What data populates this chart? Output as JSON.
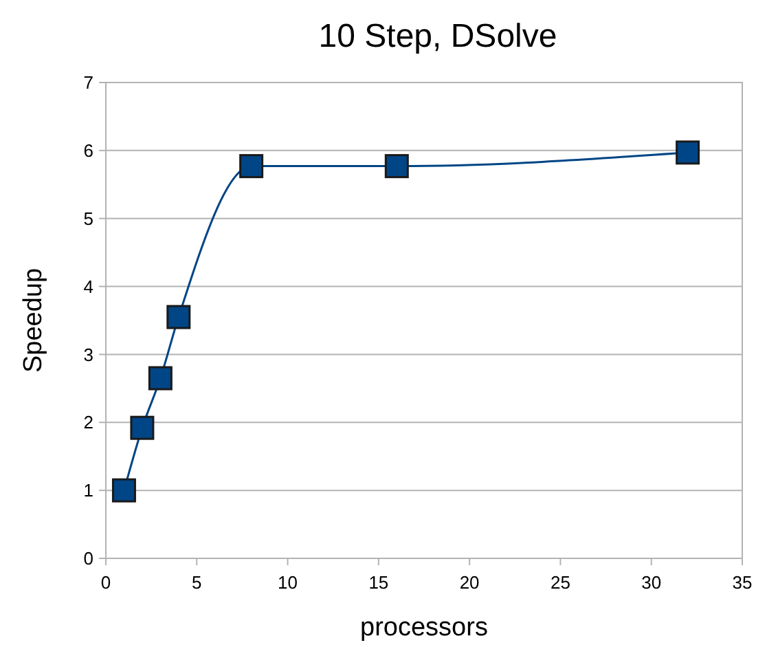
{
  "chart_data": {
    "type": "line",
    "title": "10 Step, DSolve",
    "xlabel": "processors",
    "ylabel": "Speedup",
    "x": [
      1,
      2,
      3,
      4,
      8,
      16,
      32
    ],
    "series": [
      {
        "color": "#004586",
        "values": [
          1,
          1.92,
          2.65,
          3.55,
          5.77,
          5.77,
          5.97
        ]
      }
    ],
    "xlim": [
      0,
      35
    ],
    "xticks": [
      0,
      5,
      10,
      15,
      20,
      25,
      30,
      35
    ],
    "ylim": [
      0,
      7
    ],
    "yticks": [
      0,
      1,
      2,
      3,
      4,
      5,
      6,
      7
    ],
    "grid": "y",
    "marker": "square",
    "line_style": "solid"
  }
}
